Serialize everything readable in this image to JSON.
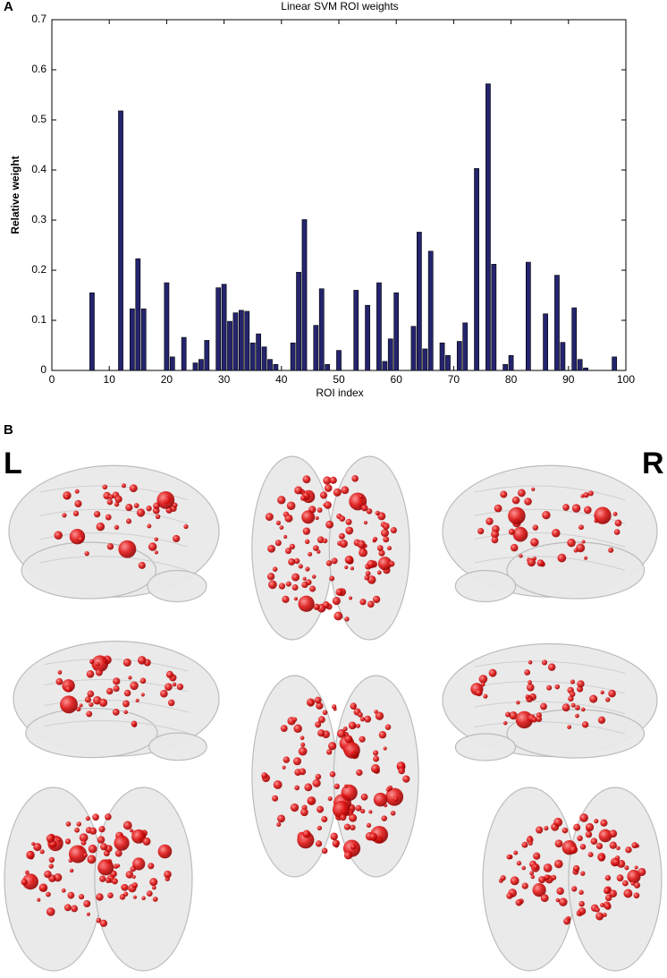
{
  "chart_data": {
    "type": "bar",
    "title": "Linear SVM ROI weights",
    "xlabel": "ROI index",
    "ylabel": "Relative weight",
    "x": [
      7,
      12,
      14,
      15,
      16,
      20,
      21,
      23,
      25,
      26,
      27,
      29,
      30,
      31,
      32,
      33,
      34,
      35,
      36,
      37,
      38,
      39,
      42,
      43,
      44,
      46,
      47,
      48,
      50,
      53,
      55,
      57,
      58,
      59,
      60,
      63,
      64,
      65,
      66,
      68,
      69,
      71,
      72,
      74,
      76,
      77,
      79,
      80,
      83,
      86,
      88,
      89,
      91,
      92,
      93,
      98
    ],
    "values": [
      0.155,
      0.518,
      0.123,
      0.223,
      0.123,
      0.175,
      0.027,
      0.066,
      0.015,
      0.022,
      0.06,
      0.165,
      0.172,
      0.098,
      0.115,
      0.12,
      0.118,
      0.055,
      0.073,
      0.047,
      0.022,
      0.012,
      0.055,
      0.196,
      0.301,
      0.09,
      0.163,
      0.012,
      0.04,
      0.16,
      0.13,
      0.175,
      0.018,
      0.063,
      0.155,
      0.088,
      0.276,
      0.043,
      0.238,
      0.055,
      0.03,
      0.058,
      0.095,
      0.403,
      0.572,
      0.212,
      0.012,
      0.03,
      0.216,
      0.113,
      0.19,
      0.056,
      0.125,
      0.022,
      0.005,
      0.027
    ],
    "color": "#24246e",
    "xlim": [
      0,
      100
    ],
    "xticks": [
      0,
      10,
      20,
      30,
      40,
      50,
      60,
      70,
      80,
      90,
      100
    ],
    "ylim": [
      0,
      0.7
    ],
    "yticks": [
      0,
      0.1,
      0.2,
      0.3,
      0.4,
      0.5,
      0.6,
      0.7
    ],
    "grid": false
  },
  "panels": {
    "a": "A",
    "b": "B"
  },
  "sides": {
    "left": "L",
    "right": "R"
  }
}
